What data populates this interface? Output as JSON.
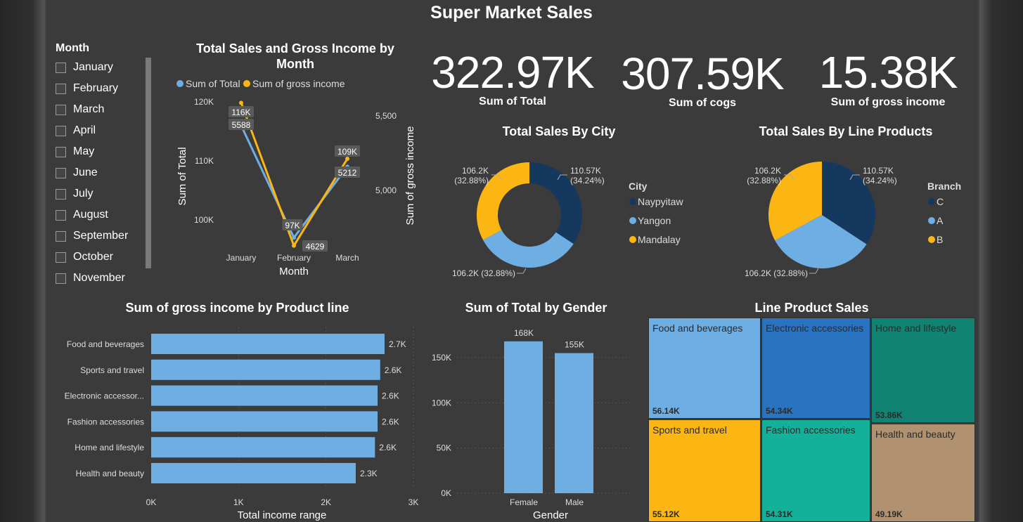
{
  "title": "Super Market Sales",
  "slicer": {
    "title": "Month",
    "items": [
      "January",
      "February",
      "March",
      "April",
      "May",
      "June",
      "July",
      "August",
      "September",
      "October",
      "November"
    ]
  },
  "kpis": [
    {
      "value": "322.97K",
      "label": "Sum of Total"
    },
    {
      "value": "307.59K",
      "label": "Sum of cogs"
    },
    {
      "value": "15.38K",
      "label": "Sum of gross income"
    }
  ],
  "colors": {
    "dark_blue": "#15385e",
    "light_blue": "#6eaee3",
    "yellow": "#fbb613",
    "blue": "#2a73c0",
    "teal": "#108373",
    "green": "#13b19a",
    "tan": "#b09270"
  },
  "chart_data": [
    {
      "id": "line",
      "type": "line",
      "title": "Total Sales and Gross Income by Month",
      "xlabel": "Month",
      "ylabel": "Sum of Total",
      "y2label": "Sum of gross income",
      "categories": [
        "January",
        "February",
        "March"
      ],
      "series": [
        {
          "name": "Sum of Total",
          "values": [
            116,
            97,
            109
          ],
          "labels": [
            "116K",
            "97K",
            "109K"
          ],
          "axis": "left",
          "color": "#6eaee3"
        },
        {
          "name": "Sum of gross income",
          "values": [
            5588,
            4629,
            5212
          ],
          "labels": [
            "5588",
            "4629",
            "5212"
          ],
          "axis": "right",
          "color": "#fbb613"
        }
      ],
      "y_ticks": [
        "120K",
        "110K",
        "100K"
      ],
      "y2_ticks": [
        "5,500",
        "5,000"
      ]
    },
    {
      "id": "city",
      "type": "pie",
      "title": "Total Sales By City",
      "legend_title": "City",
      "legend": "right",
      "slices": [
        {
          "name": "Naypyitaw",
          "value": 110.57,
          "label": "110.57K",
          "pct": "(34.24%)",
          "color": "#15385e"
        },
        {
          "name": "Yangon",
          "value": 106.2,
          "label": "106.2K (32.88%)",
          "color": "#6eaee3"
        },
        {
          "name": "Mandalay",
          "value": 106.2,
          "label": "106.2K",
          "pct": "(32.88%)",
          "color": "#fbb613"
        }
      ]
    },
    {
      "id": "branch",
      "type": "pie",
      "title": "Total Sales By Line Products",
      "legend_title": "Branch",
      "legend": "right",
      "slices": [
        {
          "name": "C",
          "value": 110.57,
          "label": "110.57K",
          "pct": "(34.24%)",
          "color": "#15385e"
        },
        {
          "name": "A",
          "value": 106.2,
          "label": "106.2K (32.88%)",
          "color": "#6eaee3"
        },
        {
          "name": "B",
          "value": 106.2,
          "label": "106.2K",
          "pct": "(32.88%)",
          "color": "#fbb613"
        }
      ]
    },
    {
      "id": "hbar",
      "type": "bar",
      "title": "Sum of gross income by Product line",
      "xlabel": "Total income range",
      "categories": [
        "Food and beverages",
        "Sports and travel",
        "Electronic accessor...",
        "Fashion accessories",
        "Home and lifestyle",
        "Health and beauty"
      ],
      "values": [
        2.67,
        2.62,
        2.59,
        2.59,
        2.56,
        2.34
      ],
      "value_labels": [
        "2.7K",
        "2.6K",
        "2.6K",
        "2.6K",
        "2.6K",
        "2.3K"
      ],
      "x_ticks": [
        "0K",
        "1K",
        "2K",
        "3K"
      ],
      "xlim": [
        0,
        3
      ]
    },
    {
      "id": "gender",
      "type": "bar",
      "title": "Sum of Total by Gender",
      "xlabel": "Gender",
      "categories": [
        "Female",
        "Male"
      ],
      "values": [
        168,
        155
      ],
      "value_labels": [
        "168K",
        "155K"
      ],
      "y_ticks": [
        "150K",
        "100K",
        "50K",
        "0K"
      ],
      "ylim": [
        0,
        180
      ]
    },
    {
      "id": "treemap",
      "type": "treemap",
      "title": "Line Product Sales",
      "items": [
        {
          "name": "Food and beverages",
          "label": "56.14K",
          "color": "#6eaee3"
        },
        {
          "name": "Electronic accessories",
          "label": "54.34K",
          "color": "#2a73c0"
        },
        {
          "name": "Home and lifestyle",
          "label": "53.86K",
          "color": "#108373"
        },
        {
          "name": "Sports and travel",
          "label": "55.12K",
          "color": "#fbb613"
        },
        {
          "name": "Fashion accessories",
          "label": "54.31K",
          "color": "#13b19a"
        },
        {
          "name": "Health and beauty",
          "label": "49.19K",
          "color": "#b09270"
        }
      ]
    }
  ]
}
